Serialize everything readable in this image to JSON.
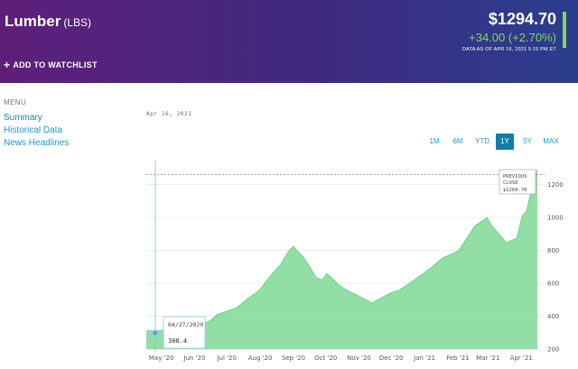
{
  "header": {
    "title": "Lumber",
    "symbol": "(LBS)",
    "watchlist_label": "ADD TO WATCHLIST",
    "watchlist_icon": "plus-icon",
    "price": "$1294.70",
    "change": "+34.00 (+2.70%)",
    "as_of": "DATA AS OF APR 16, 2021 5:15 PM ET",
    "accent_color": "#7ed957"
  },
  "menu": {
    "heading": "MENU",
    "items": [
      {
        "label": "Summary"
      },
      {
        "label": "Historical Data"
      },
      {
        "label": "News Headlines"
      }
    ]
  },
  "chart_header": {
    "date": "Apr 16, 2021"
  },
  "ranges": [
    {
      "label": "1M",
      "active": false
    },
    {
      "label": "6M",
      "active": false
    },
    {
      "label": "YTD",
      "active": false
    },
    {
      "label": "1Y",
      "active": true
    },
    {
      "label": "5Y",
      "active": false
    },
    {
      "label": "MAX",
      "active": false
    }
  ],
  "tooltip": {
    "date": "04/27/2020",
    "value": "308.4"
  },
  "prev_close": {
    "line1": "PREVIOUS",
    "line2": "CLOSE",
    "value": "$1260.70"
  },
  "chart_data": {
    "type": "area",
    "title": "",
    "xlabel": "",
    "ylabel": "",
    "ylim": [
      200,
      1280
    ],
    "y_ticks": [
      200,
      400,
      600,
      800,
      1000,
      1200
    ],
    "x_ticks": [
      "May '20",
      "Jun '20",
      "Jul '20",
      "Aug '20",
      "Sep '20",
      "Oct '20",
      "Nov '20",
      "Dec '20",
      "Jan '21",
      "Feb '21",
      "Mar '21",
      "Apr '21"
    ],
    "x_range": [
      "2020-04-17",
      "2021-04-16"
    ],
    "previous_close": 1260.7,
    "fill_color": "#7ed995",
    "points": [
      [
        "2020-04-17",
        312
      ],
      [
        "2020-04-27",
        308
      ],
      [
        "2020-05-06",
        318
      ],
      [
        "2020-05-15",
        322
      ],
      [
        "2020-05-25",
        330
      ],
      [
        "2020-06-05",
        345
      ],
      [
        "2020-06-15",
        370
      ],
      [
        "2020-06-22",
        410
      ],
      [
        "2020-07-01",
        430
      ],
      [
        "2020-07-10",
        450
      ],
      [
        "2020-07-20",
        505
      ],
      [
        "2020-07-31",
        555
      ],
      [
        "2020-08-10",
        640
      ],
      [
        "2020-08-20",
        715
      ],
      [
        "2020-08-27",
        790
      ],
      [
        "2020-09-01",
        825
      ],
      [
        "2020-09-04",
        800
      ],
      [
        "2020-09-10",
        760
      ],
      [
        "2020-09-16",
        700
      ],
      [
        "2020-09-22",
        635
      ],
      [
        "2020-09-28",
        620
      ],
      [
        "2020-10-02",
        660
      ],
      [
        "2020-10-07",
        630
      ],
      [
        "2020-10-13",
        590
      ],
      [
        "2020-10-20",
        560
      ],
      [
        "2020-10-28",
        535
      ],
      [
        "2020-11-06",
        505
      ],
      [
        "2020-11-13",
        480
      ],
      [
        "2020-11-20",
        505
      ],
      [
        "2020-11-30",
        540
      ],
      [
        "2020-12-09",
        560
      ],
      [
        "2020-12-18",
        600
      ],
      [
        "2020-12-29",
        650
      ],
      [
        "2021-01-08",
        700
      ],
      [
        "2021-01-18",
        755
      ],
      [
        "2021-01-27",
        780
      ],
      [
        "2021-02-02",
        800
      ],
      [
        "2021-02-09",
        870
      ],
      [
        "2021-02-17",
        950
      ],
      [
        "2021-02-23",
        975
      ],
      [
        "2021-02-28",
        1000
      ],
      [
        "2021-03-04",
        955
      ],
      [
        "2021-03-09",
        915
      ],
      [
        "2021-03-14",
        880
      ],
      [
        "2021-03-18",
        845
      ],
      [
        "2021-03-22",
        858
      ],
      [
        "2021-03-28",
        875
      ],
      [
        "2021-04-02",
        1010
      ],
      [
        "2021-04-06",
        1040
      ],
      [
        "2021-04-09",
        1125
      ],
      [
        "2021-04-13",
        1200
      ],
      [
        "2021-04-16",
        1294.7
      ]
    ]
  }
}
